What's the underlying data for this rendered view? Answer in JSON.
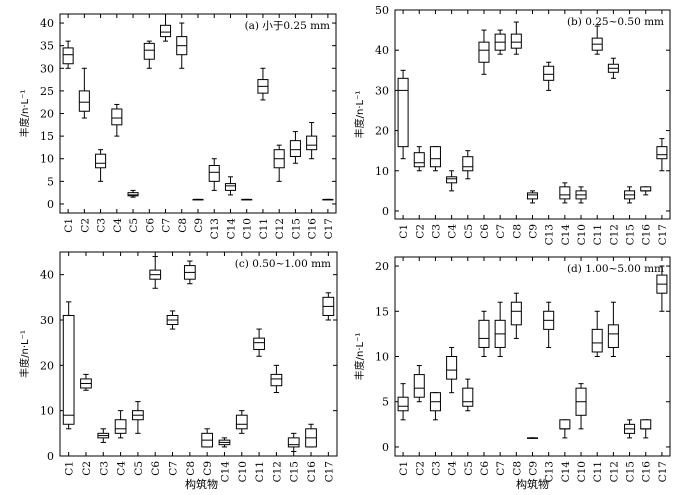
{
  "figure": {
    "xlabel_bottom_left": "构筑物",
    "xlabel_bottom_right": "构筑物"
  },
  "chart_data": [
    {
      "type": "box",
      "title": "(a) 小于0.25 mm",
      "ylabel": "丰度/n·L⁻¹",
      "ylim": [
        -2,
        42
      ],
      "yticks": [
        0,
        5,
        10,
        15,
        20,
        25,
        30,
        35,
        40
      ],
      "categories": [
        "C1",
        "C2",
        "C3",
        "C4",
        "C5",
        "C6",
        "C7",
        "C8",
        "C9",
        "C13",
        "C14",
        "C10",
        "C11",
        "C12",
        "C15",
        "C16",
        "C17"
      ],
      "boxes": [
        {
          "min": 30,
          "q1": 31,
          "median": 33,
          "q3": 34.5,
          "max": 36
        },
        {
          "min": 19,
          "q1": 20.5,
          "median": 22.5,
          "q3": 25,
          "max": 30
        },
        {
          "min": 5,
          "q1": 8,
          "median": 9,
          "q3": 11,
          "max": 12
        },
        {
          "min": 15,
          "q1": 17.5,
          "median": 19,
          "q3": 21,
          "max": 22
        },
        {
          "min": 1.5,
          "q1": 1.8,
          "median": 2,
          "q3": 2.5,
          "max": 3
        },
        {
          "min": 30,
          "q1": 32,
          "median": 34,
          "q3": 35.5,
          "max": 36
        },
        {
          "min": 36,
          "q1": 37,
          "median": 38,
          "q3": 39.5,
          "max": 42
        },
        {
          "min": 30,
          "q1": 33,
          "median": 35,
          "q3": 37,
          "max": 40
        },
        {
          "min": 1,
          "q1": 1,
          "median": 1,
          "q3": 1,
          "max": 1
        },
        {
          "min": 3,
          "q1": 5,
          "median": 7,
          "q3": 8.5,
          "max": 10
        },
        {
          "min": 2,
          "q1": 3,
          "median": 4,
          "q3": 4.5,
          "max": 6
        },
        {
          "min": 1,
          "q1": 1,
          "median": 1,
          "q3": 1,
          "max": 1
        },
        {
          "min": 23,
          "q1": 24.5,
          "median": 26,
          "q3": 27.5,
          "max": 30
        },
        {
          "min": 5,
          "q1": 8,
          "median": 10,
          "q3": 12,
          "max": 13
        },
        {
          "min": 9,
          "q1": 10.5,
          "median": 12,
          "q3": 14,
          "max": 16
        },
        {
          "min": 10,
          "q1": 12,
          "median": 13,
          "q3": 15,
          "max": 18
        },
        {
          "min": 1,
          "q1": 1,
          "median": 1,
          "q3": 1,
          "max": 1
        }
      ]
    },
    {
      "type": "box",
      "title": "(b) 0.25~0.50 mm",
      "ylabel": "丰度/n·L⁻¹",
      "ylim": [
        -2,
        50
      ],
      "yticks": [
        0,
        10,
        20,
        30,
        40,
        50
      ],
      "categories": [
        "C1",
        "C2",
        "C3",
        "C4",
        "C5",
        "C6",
        "C7",
        "C8",
        "C9",
        "C13",
        "C14",
        "C10",
        "C11",
        "C12",
        "C15",
        "C16",
        "C17"
      ],
      "boxes": [
        {
          "min": 13,
          "q1": 16,
          "median": 30,
          "q3": 33,
          "max": 35
        },
        {
          "min": 10,
          "q1": 11,
          "median": 12,
          "q3": 14.5,
          "max": 16
        },
        {
          "min": 10,
          "q1": 11,
          "median": 13,
          "q3": 16,
          "max": 16
        },
        {
          "min": 5,
          "q1": 7,
          "median": 8,
          "q3": 8.5,
          "max": 10
        },
        {
          "min": 8,
          "q1": 10,
          "median": 11,
          "q3": 13.5,
          "max": 15
        },
        {
          "min": 34,
          "q1": 37,
          "median": 40,
          "q3": 42,
          "max": 45
        },
        {
          "min": 39,
          "q1": 40,
          "median": 42,
          "q3": 44,
          "max": 45
        },
        {
          "min": 39,
          "q1": 40.5,
          "median": 42,
          "q3": 44,
          "max": 47
        },
        {
          "min": 2,
          "q1": 3,
          "median": 4,
          "q3": 4.5,
          "max": 5
        },
        {
          "min": 30,
          "q1": 32.5,
          "median": 34,
          "q3": 36,
          "max": 37
        },
        {
          "min": 2,
          "q1": 3,
          "median": 4,
          "q3": 6,
          "max": 7
        },
        {
          "min": 2,
          "q1": 3,
          "median": 4,
          "q3": 5,
          "max": 6
        },
        {
          "min": 39,
          "q1": 40,
          "median": 41.5,
          "q3": 43,
          "max": 46
        },
        {
          "min": 33,
          "q1": 34.5,
          "median": 35.5,
          "q3": 36.5,
          "max": 38
        },
        {
          "min": 2,
          "q1": 3,
          "median": 4,
          "q3": 5,
          "max": 6
        },
        {
          "min": 4,
          "q1": 5,
          "median": 5,
          "q3": 6,
          "max": 6
        },
        {
          "min": 10,
          "q1": 13,
          "median": 14,
          "q3": 16,
          "max": 18
        }
      ]
    },
    {
      "type": "box",
      "title": "(c) 0.50~1.00 mm",
      "ylabel": "丰度/n·L⁻¹",
      "ylim": [
        0,
        45
      ],
      "yticks": [
        0,
        10,
        20,
        30,
        40
      ],
      "categories": [
        "C1",
        "C2",
        "C3",
        "C4",
        "C5",
        "C6",
        "C7",
        "C8",
        "C9",
        "C14",
        "C10",
        "C11",
        "C12",
        "C15",
        "C16",
        "C17"
      ],
      "boxes": [
        {
          "min": 6,
          "q1": 7,
          "median": 9,
          "q3": 31,
          "max": 34
        },
        {
          "min": 14.5,
          "q1": 15,
          "median": 16,
          "q3": 17,
          "max": 18
        },
        {
          "min": 3,
          "q1": 4,
          "median": 4.5,
          "q3": 5,
          "max": 6
        },
        {
          "min": 4,
          "q1": 5,
          "median": 6,
          "q3": 8,
          "max": 10
        },
        {
          "min": 5,
          "q1": 8,
          "median": 9,
          "q3": 10,
          "max": 12
        },
        {
          "min": 37,
          "q1": 39,
          "median": 40,
          "q3": 41,
          "max": 44
        },
        {
          "min": 28,
          "q1": 29,
          "median": 30,
          "q3": 31,
          "max": 32
        },
        {
          "min": 38,
          "q1": 39,
          "median": 40.5,
          "q3": 42,
          "max": 43
        },
        {
          "min": 2,
          "q1": 2,
          "median": 3.5,
          "q3": 5,
          "max": 6
        },
        {
          "min": 2,
          "q1": 2.5,
          "median": 3,
          "q3": 3.5,
          "max": 4
        },
        {
          "min": 5,
          "q1": 6,
          "median": 7,
          "q3": 9,
          "max": 10
        },
        {
          "min": 22,
          "q1": 23.5,
          "median": 25,
          "q3": 26,
          "max": 28
        },
        {
          "min": 14,
          "q1": 15.5,
          "median": 17,
          "q3": 18,
          "max": 20
        },
        {
          "min": 1,
          "q1": 2,
          "median": 2.5,
          "q3": 4,
          "max": 5
        },
        {
          "min": 2,
          "q1": 2,
          "median": 4,
          "q3": 6,
          "max": 7
        },
        {
          "min": 30,
          "q1": 31,
          "median": 33,
          "q3": 35,
          "max": 36
        }
      ]
    },
    {
      "type": "box",
      "title": "(d) 1.00~5.00 mm",
      "ylabel": "丰度/n·L⁻¹",
      "ylim": [
        -1,
        21
      ],
      "yticks": [
        0,
        5,
        10,
        15,
        20
      ],
      "categories": [
        "C1",
        "C2",
        "C3",
        "C4",
        "C5",
        "C6",
        "C7",
        "C8",
        "C9",
        "C13",
        "C14",
        "C10",
        "C11",
        "C12",
        "C15",
        "C16",
        "C17"
      ],
      "boxes": [
        {
          "min": 3,
          "q1": 4,
          "median": 4.5,
          "q3": 5.5,
          "max": 7
        },
        {
          "min": 5,
          "q1": 5.5,
          "median": 6.5,
          "q3": 8,
          "max": 9
        },
        {
          "min": 3,
          "q1": 4,
          "median": 5,
          "q3": 6,
          "max": 6
        },
        {
          "min": 6,
          "q1": 7.5,
          "median": 8.5,
          "q3": 10,
          "max": 11
        },
        {
          "min": 4,
          "q1": 4.5,
          "median": 5,
          "q3": 6.5,
          "max": 7.5
        },
        {
          "min": 10,
          "q1": 11,
          "median": 12,
          "q3": 14,
          "max": 15
        },
        {
          "min": 10,
          "q1": 11,
          "median": 12.5,
          "q3": 14,
          "max": 16
        },
        {
          "min": 12,
          "q1": 13.5,
          "median": 15,
          "q3": 16,
          "max": 17
        },
        {
          "min": 1,
          "q1": 1,
          "median": 1,
          "q3": 1,
          "max": 1
        },
        {
          "min": 11,
          "q1": 13,
          "median": 14,
          "q3": 15,
          "max": 16
        },
        {
          "min": 1,
          "q1": 2,
          "median": 2,
          "q3": 3,
          "max": 3
        },
        {
          "min": 2,
          "q1": 3.5,
          "median": 5,
          "q3": 6.5,
          "max": 7
        },
        {
          "min": 10,
          "q1": 10.5,
          "median": 11.5,
          "q3": 13,
          "max": 15
        },
        {
          "min": 10,
          "q1": 11,
          "median": 12.5,
          "q3": 13.5,
          "max": 16
        },
        {
          "min": 1,
          "q1": 1.5,
          "median": 2,
          "q3": 2.5,
          "max": 3
        },
        {
          "min": 1,
          "q1": 2,
          "median": 2,
          "q3": 3,
          "max": 3
        },
        {
          "min": 15,
          "q1": 17,
          "median": 18,
          "q3": 19,
          "max": 20
        }
      ]
    }
  ]
}
